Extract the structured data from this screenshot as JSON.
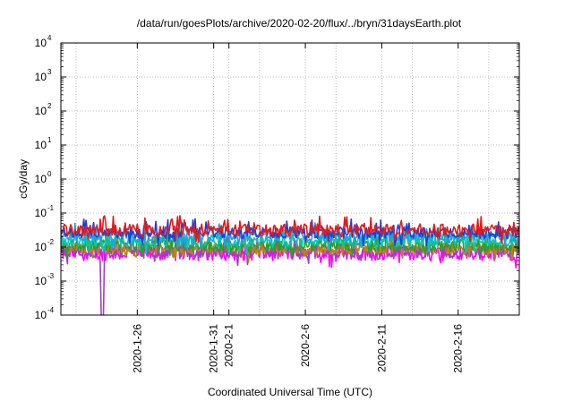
{
  "chart_data": {
    "type": "line",
    "title": "/data/run/goesPlots/archive/2020-02-20/flux/../bryn/31daysEarth.plot",
    "xlabel": "Coordinated Universal Time (UTC)",
    "ylabel": "cGy/day",
    "yscale": "log",
    "ylim": [
      0.0001,
      10000
    ],
    "xlim": [
      "2020-01-21",
      "2020-02-20"
    ],
    "grid": true,
    "legend": "none",
    "y_ticks": [
      {
        "base": "10",
        "exp": "-4",
        "value": 0.0001
      },
      {
        "base": "10",
        "exp": "-3",
        "value": 0.001
      },
      {
        "base": "10",
        "exp": "-2",
        "value": 0.01
      },
      {
        "base": "10",
        "exp": "-1",
        "value": 0.1
      },
      {
        "base": "10",
        "exp": "0",
        "value": 1
      },
      {
        "base": "10",
        "exp": "1",
        "value": 10
      },
      {
        "base": "10",
        "exp": "2",
        "value": 100
      },
      {
        "base": "10",
        "exp": "3",
        "value": 1000
      },
      {
        "base": "10",
        "exp": "4",
        "value": 10000
      }
    ],
    "x_ticks": [
      {
        "label": "2020-1-26",
        "date": "2020-01-26"
      },
      {
        "label": "2020-1-31",
        "date": "2020-01-31"
      },
      {
        "label": "2020-2-1",
        "date": "2020-02-01"
      },
      {
        "label": "2020-2-6",
        "date": "2020-02-06"
      },
      {
        "label": "2020-2-11",
        "date": "2020-02-11"
      },
      {
        "label": "2020-2-16",
        "date": "2020-02-16"
      }
    ],
    "series": [
      {
        "color": "#e41a1c",
        "base": 0.032,
        "spread": 0.35
      },
      {
        "color": "#1f3fd6",
        "base": 0.026,
        "spread": 0.32
      },
      {
        "color": "#1e9fe8",
        "base": 0.021,
        "spread": 0.3
      },
      {
        "color": "#00c8b0",
        "base": 0.015,
        "spread": 0.32
      },
      {
        "color": "#2e9d2e",
        "base": 0.011,
        "spread": 0.34
      },
      {
        "color": "#b8860b",
        "base": 0.009,
        "spread": 0.36
      },
      {
        "color": "#a040c0",
        "base": 0.0075,
        "spread": 0.4
      },
      {
        "color": "#ff00ff",
        "base": 0.0065,
        "spread": 0.42
      }
    ],
    "dropout": {
      "start": "2020-01-23T14:00",
      "end": "2020-01-23T20:00",
      "series_color": "#a040c0"
    }
  }
}
